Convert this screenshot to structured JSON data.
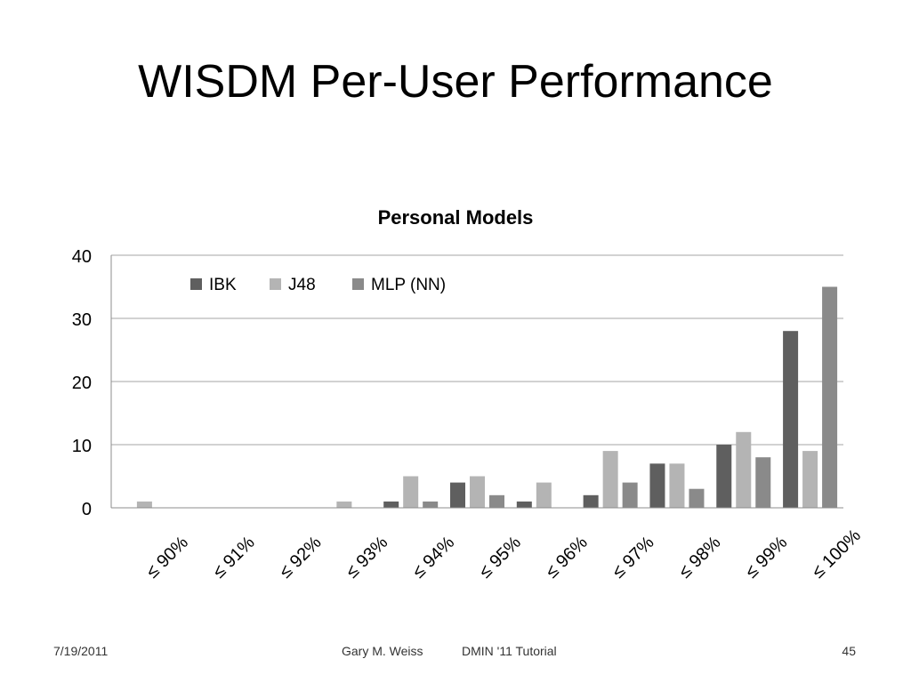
{
  "slide": {
    "title": "WISDM Per-User Performance"
  },
  "footer": {
    "date": "7/19/2011",
    "author": "Gary M. Weiss",
    "event": "DMIN '11 Tutorial",
    "page": "45"
  },
  "chart_data": {
    "type": "bar",
    "title": "Personal Models",
    "xlabel": "",
    "ylabel": "",
    "ylim": [
      0,
      40
    ],
    "yticks": [
      0,
      10,
      20,
      30,
      40
    ],
    "grid": true,
    "legend_position": "top",
    "categories": [
      "≤ 90%",
      "≤ 91%",
      "≤ 92%",
      "≤ 93%",
      "≤ 94%",
      "≤ 95%",
      "≤ 96%",
      "≤ 97%",
      "≤ 98%",
      "≤ 99%",
      "≤ 100%"
    ],
    "series": [
      {
        "name": "IBK",
        "color": "#5f5f5f",
        "values": [
          0,
          0,
          0,
          0,
          1,
          4,
          1,
          2,
          7,
          10,
          28
        ]
      },
      {
        "name": "J48",
        "color": "#b4b4b4",
        "values": [
          1,
          0,
          0,
          1,
          5,
          5,
          4,
          9,
          7,
          12,
          9
        ]
      },
      {
        "name": "MLP (NN)",
        "color": "#8a8a8a",
        "values": [
          0,
          0,
          0,
          0,
          1,
          2,
          0,
          4,
          3,
          8,
          35
        ]
      }
    ]
  }
}
